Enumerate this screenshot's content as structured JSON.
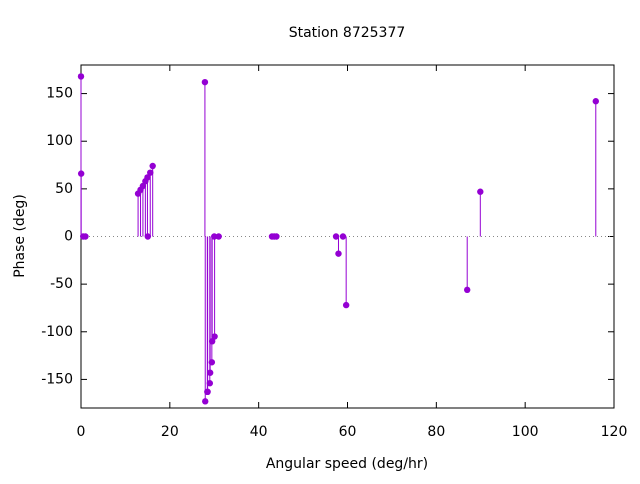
{
  "chart_data": {
    "type": "stem",
    "title": "Station 8725377",
    "x_label": "Angular speed (deg/hr)",
    "y_label": "Phase (deg)",
    "x": [
      0,
      0.04,
      0.5,
      1.0,
      12.85,
      13.4,
      13.94,
      14.49,
      14.96,
      15.04,
      15.59,
      16.14,
      27.9,
      27.97,
      28.44,
      28.51,
      29.0,
      29.08,
      29.46,
      29.53,
      30.0,
      30.08,
      31.0,
      43.0,
      43.5,
      44.0,
      57.42,
      57.97,
      58.98,
      59.7,
      86.95,
      89.9,
      115.9
    ],
    "values": [
      168,
      66,
      0,
      0,
      45,
      49,
      53,
      58,
      62,
      0,
      67,
      74,
      162,
      -173,
      -163,
      -163,
      -154,
      -143,
      -132,
      -110,
      0,
      -105,
      0,
      0,
      0,
      0,
      0,
      -18,
      0,
      -72,
      -56,
      47,
      142
    ],
    "color": "#9400d3",
    "zeroaxis": true,
    "xlim": [
      0,
      120
    ],
    "xticks": [
      0,
      20,
      40,
      60,
      80,
      100,
      120
    ],
    "ylim": [
      -180,
      180
    ],
    "yticks": [
      -150,
      -100,
      -50,
      0,
      50,
      100,
      150
    ]
  }
}
